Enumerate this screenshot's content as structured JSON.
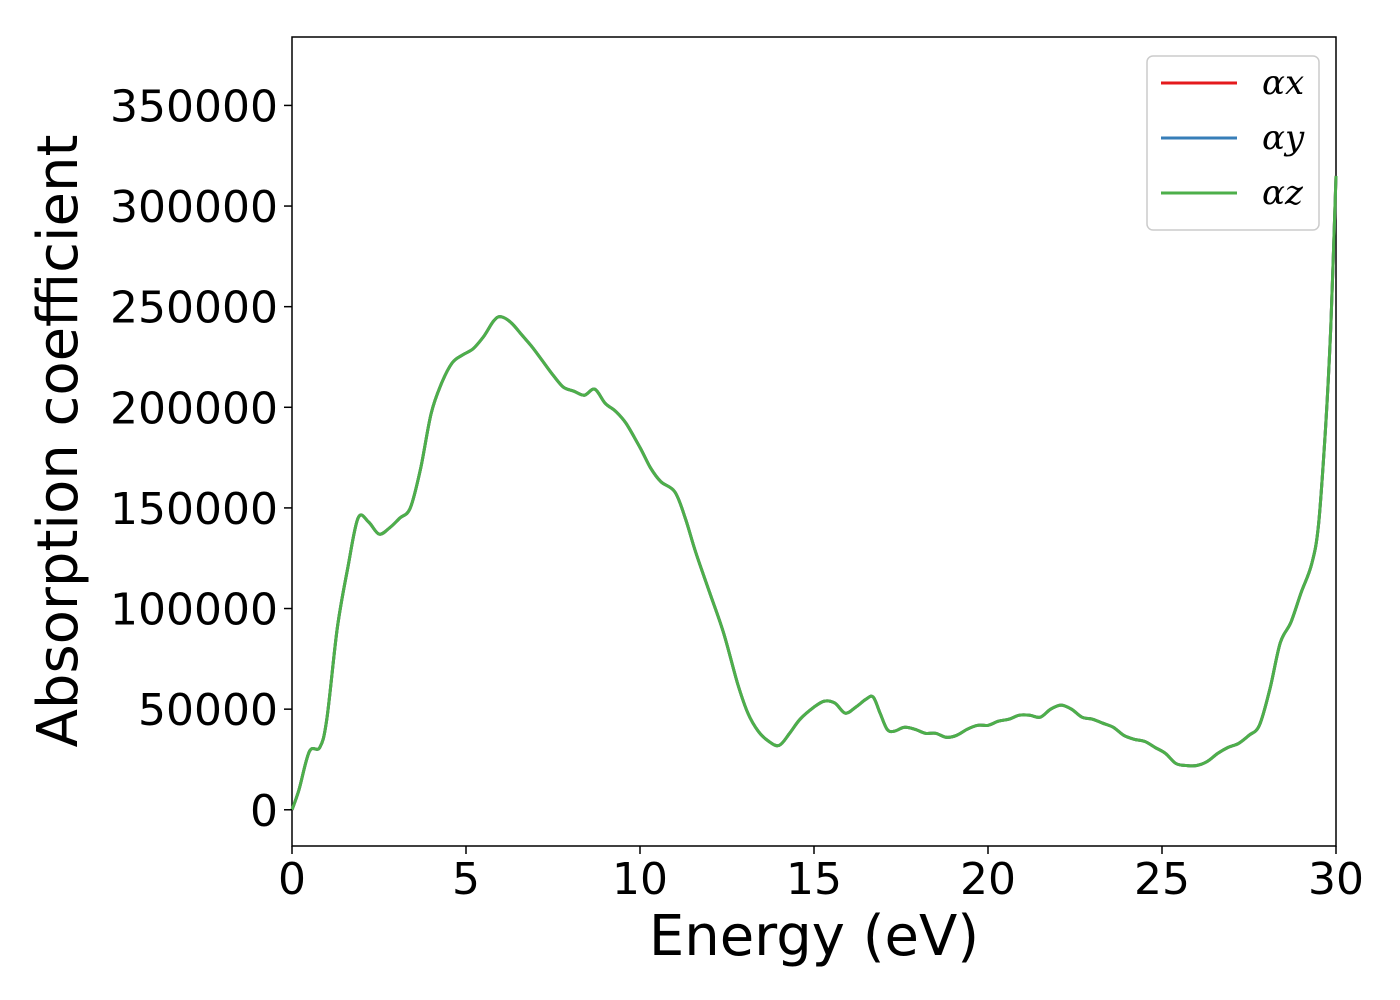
{
  "chart_data": {
    "type": "line",
    "xlabel": "Energy (eV)",
    "ylabel": "Absorption coefficient",
    "xlim": [
      0,
      30
    ],
    "ylim": [
      -18000,
      384000
    ],
    "x_ticks": [
      "0",
      "5",
      "10",
      "15",
      "20",
      "25",
      "30"
    ],
    "y_ticks": [
      "0",
      "50000",
      "100000",
      "150000",
      "200000",
      "250000",
      "300000",
      "350000"
    ],
    "grid": false,
    "legend_position": "top-right",
    "series": [
      {
        "name": "αx",
        "color": "#e41a1c"
      },
      {
        "name": "αy",
        "color": "#377eb8"
      },
      {
        "name": "αz",
        "color": "#4daf4a"
      }
    ],
    "x": [
      0,
      0.2,
      0.5,
      0.8,
      1.0,
      1.3,
      1.6,
      1.9,
      2.2,
      2.5,
      2.8,
      3.1,
      3.4,
      3.7,
      4.0,
      4.3,
      4.6,
      4.9,
      5.2,
      5.5,
      5.8,
      6.0,
      6.3,
      6.6,
      6.9,
      7.2,
      7.5,
      7.8,
      8.1,
      8.4,
      8.7,
      9.0,
      9.3,
      9.6,
      10.0,
      10.3,
      10.6,
      11.0,
      11.3,
      11.6,
      12.0,
      12.4,
      12.8,
      13.1,
      13.4,
      13.7,
      14.0,
      14.3,
      14.6,
      15.0,
      15.3,
      15.6,
      15.9,
      16.2,
      16.5,
      16.7,
      16.9,
      17.1,
      17.3,
      17.6,
      17.9,
      18.2,
      18.5,
      18.8,
      19.1,
      19.4,
      19.7,
      20.0,
      20.3,
      20.6,
      20.9,
      21.2,
      21.5,
      21.8,
      22.1,
      22.4,
      22.7,
      23.0,
      23.3,
      23.6,
      23.9,
      24.2,
      24.5,
      24.8,
      25.1,
      25.4,
      25.7,
      26.0,
      26.3,
      26.6,
      26.9,
      27.2,
      27.5,
      27.8,
      28.1,
      28.4,
      28.7,
      29.0,
      29.3,
      29.5,
      29.7,
      29.85,
      30.0
    ],
    "values": [
      0,
      10000,
      29000,
      31000,
      45000,
      90000,
      120000,
      145000,
      143000,
      137000,
      140000,
      145000,
      150000,
      170000,
      197000,
      212000,
      222000,
      226000,
      229000,
      235000,
      243000,
      245000,
      242000,
      236000,
      230000,
      223000,
      216000,
      210000,
      208000,
      206000,
      209000,
      202000,
      198000,
      192000,
      180000,
      170000,
      163000,
      158000,
      145000,
      128000,
      108000,
      88000,
      63000,
      48000,
      39000,
      34000,
      32000,
      38000,
      45000,
      51000,
      54000,
      53000,
      48000,
      51000,
      55000,
      56000,
      48000,
      40000,
      39000,
      41000,
      40000,
      38000,
      38000,
      36000,
      37000,
      40000,
      42000,
      42000,
      44000,
      45000,
      47000,
      47000,
      46000,
      50000,
      52000,
      50000,
      46000,
      45000,
      43000,
      41000,
      37000,
      35000,
      34000,
      31000,
      28000,
      23000,
      22000,
      22000,
      24000,
      28000,
      31000,
      33000,
      37000,
      42000,
      60000,
      83000,
      93000,
      108000,
      122000,
      142000,
      190000,
      240000,
      315000
    ]
  }
}
